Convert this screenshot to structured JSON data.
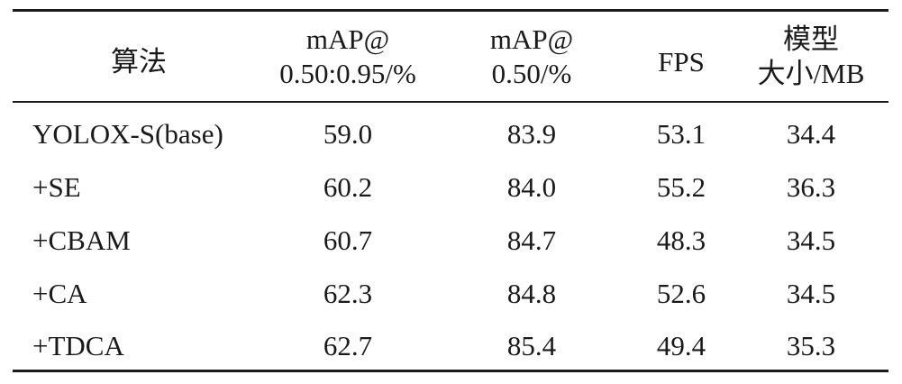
{
  "table": {
    "headers": [
      [
        "算法"
      ],
      [
        "mAP@",
        "0.50:0.95/%"
      ],
      [
        "mAP@",
        "0.50/%"
      ],
      [
        "FPS"
      ],
      [
        "模型",
        "大小/MB"
      ]
    ],
    "rows": [
      [
        "YOLOX-S(base)",
        "59.0",
        "83.9",
        "53.1",
        "34.4"
      ],
      [
        "+SE",
        "60.2",
        "84.0",
        "55.2",
        "36.3"
      ],
      [
        "+CBAM",
        "60.7",
        "84.7",
        "48.3",
        "34.5"
      ],
      [
        "+CA",
        "62.3",
        "84.8",
        "52.6",
        "34.5"
      ],
      [
        "+TDCA",
        "62.7",
        "85.4",
        "49.4",
        "35.3"
      ]
    ]
  }
}
